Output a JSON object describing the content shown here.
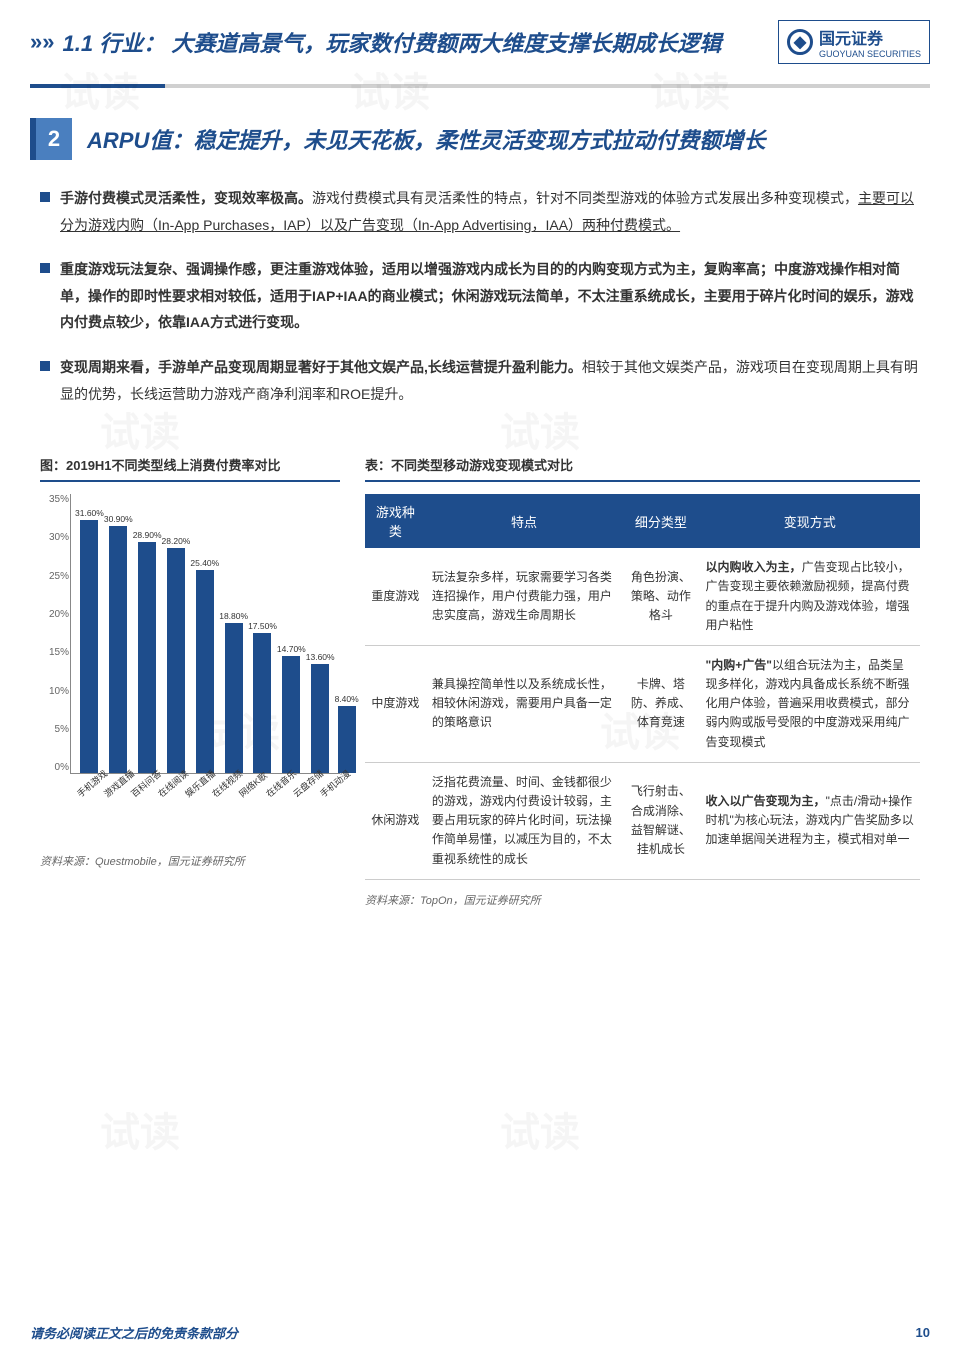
{
  "header": {
    "section_num": "1.1",
    "section_label": "行业：",
    "title": "大赛道高景气，玩家数付费额两大维度支撑长期成长逻辑",
    "logo_cn": "国元证券",
    "logo_en": "GUOYUAN SECURITIES"
  },
  "subsection": {
    "num": "2",
    "title": "ARPU值：稳定提升，未见天花板，柔性灵活变现方式拉动付费额增长"
  },
  "bullets": [
    {
      "bold_lead": "手游付费模式灵活柔性，变现效率极高。",
      "text": "游戏付费模式具有灵活柔性的特点，针对不同类型游戏的体验方式发展出多种变现模式，",
      "underline_part": "主要可以分为游戏内购（In-App Purchases，IAP）以及广告变现（In-App Advertising，IAA）两种付费模式。"
    },
    {
      "bold_lead": "重度游戏玩法复杂、强调操作感，更注重游戏体验，适用以增强游戏内成长为目的的内购变现方式为主，复购率高；中度游戏操作相对简单，操作的即时性要求相对较低，适用于IAP+IAA的商业模式；休闲游戏玩法简单，不太注重系统成长，主要用于碎片化时间的娱乐，游戏内付费点较少，依靠IAA方式进行变现。",
      "text": "",
      "underline_part": ""
    },
    {
      "bold_lead": "变现周期来看，手游单产品变现周期显著好于其他文娱产品,长线运营提升盈利能力。",
      "text": "相较于其他文娱类产品，游戏项目在变现周期上具有明显的优势，长线运营助力游戏产商净利润率和ROE提升。",
      "underline_part": ""
    }
  ],
  "chart": {
    "title": "图：2019H1不同类型线上消费付费率对比",
    "type": "bar",
    "ylim": [
      0,
      35
    ],
    "ytick_step": 5,
    "yticks": [
      "35%",
      "30%",
      "25%",
      "20%",
      "15%",
      "10%",
      "5%",
      "0%"
    ],
    "categories": [
      "手机游戏",
      "游戏直播",
      "百科问答",
      "在线阅读",
      "娱乐直播",
      "在线视频",
      "网络K歌",
      "在线音乐",
      "云盘存储",
      "手机动漫"
    ],
    "values": [
      31.6,
      30.9,
      28.9,
      28.2,
      25.4,
      18.8,
      17.5,
      14.7,
      13.6,
      8.4
    ],
    "labels": [
      "31.60%",
      "30.90%",
      "28.90%",
      "28.20%",
      "25.40%",
      "18.80%",
      "17.50%",
      "14.70%",
      "13.60%",
      "8.40%"
    ],
    "bar_color": "#1e4d8c",
    "source": "资料来源：Questmobile，国元证券研究所"
  },
  "table": {
    "title": "表：不同类型移动游戏变现模式对比",
    "headers": [
      "游戏种类",
      "特点",
      "细分类型",
      "变现方式"
    ],
    "rows": [
      {
        "c0": "重度游戏",
        "c1": "玩法复杂多样，玩家需要学习各类连招操作，用户付费能力强，用户忠实度高，游戏生命周期长",
        "c2": "角色扮演、策略、动作格斗",
        "c3_bold": "以内购收入为主，",
        "c3_rest": "广告变现占比较小，广告变现主要依赖激励视频，提高付费的重点在于提升内购及游戏体验，增强用户粘性"
      },
      {
        "c0": "中度游戏",
        "c1": "兼具操控简单性以及系统成长性，相较休闲游戏，需要用户具备一定的策略意识",
        "c2": "卡牌、塔防、养成、体育竞速",
        "c3_bold": "\"内购+广告\"",
        "c3_rest": "以组合玩法为主，品类呈现多样化，游戏内具备成长系统不断强化用户体验，普遍采用收费模式，部分弱内购或版号受限的中度游戏采用纯广告变现模式"
      },
      {
        "c0": "休闲游戏",
        "c1": "泛指花费流量、时间、金钱都很少的游戏，游戏内付费设计较弱，主要占用玩家的碎片化时间，玩法操作简单易懂，以减压为目的，不太重视系统性的成长",
        "c2": "飞行射击、合成消除、益智解谜、挂机成长",
        "c3_bold": "收入以广告变现为主，",
        "c3_rest": "\"点击/滑动+操作时机\"为核心玩法，游戏内广告奖励多以加速单据闯关进程为主，模式相对单一"
      }
    ],
    "source": "资料来源：TopOn，国元证券研究所"
  },
  "footer": {
    "text": "请务必阅读正文之后的免责条款部分",
    "page": "10"
  },
  "watermark": "试读"
}
